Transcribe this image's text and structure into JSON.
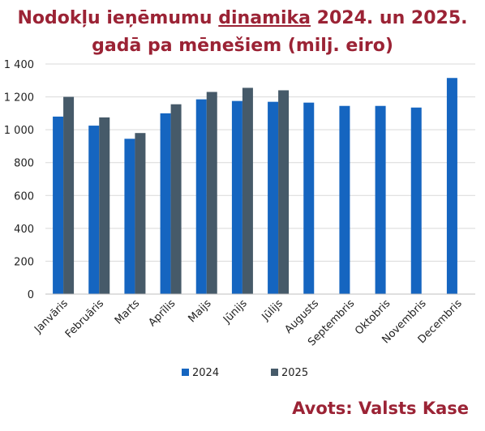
{
  "title": {
    "line1_pre": "Nodokļu ieņēmumu ",
    "line1_underlined": "dinamika",
    "line1_post": " 2024. un 2025.",
    "line2": "gadā pa mēnešiem (milj. eiro)"
  },
  "source": "Avots: Valsts Kase",
  "colors": {
    "series_2024": "#1565c0",
    "series_2025": "#465a69",
    "grid": "#d9d9d9",
    "title": "#9b2335"
  },
  "chart_data": {
    "type": "bar",
    "title": "Nodokļu ieņēmumu dinamika 2024. un 2025. gadā pa mēnešiem (milj. eiro)",
    "xlabel": "",
    "ylabel": "",
    "ylim": [
      0,
      1400
    ],
    "yticks": [
      0,
      200,
      400,
      600,
      800,
      1000,
      1200,
      1400
    ],
    "ytick_labels": [
      "0",
      "200",
      "400",
      "600",
      "800",
      "1 000",
      "1 200",
      "1 400"
    ],
    "grid": true,
    "legend_position": "bottom",
    "categories": [
      "Janvāris",
      "Februāris",
      "Marts",
      "Aprīlis",
      "Maijs",
      "Jūnijs",
      "Jūlijs",
      "Augusts",
      "Septembris",
      "Oktobris",
      "Novembris",
      "Decembris"
    ],
    "series": [
      {
        "name": "2024",
        "color": "#1565c0",
        "values": [
          1080,
          1025,
          945,
          1100,
          1185,
          1175,
          1170,
          1165,
          1145,
          1145,
          1135,
          1315
        ]
      },
      {
        "name": "2025",
        "color": "#465a69",
        "values": [
          1200,
          1075,
          980,
          1155,
          1230,
          1255,
          1240,
          null,
          null,
          null,
          null,
          null
        ]
      }
    ]
  }
}
